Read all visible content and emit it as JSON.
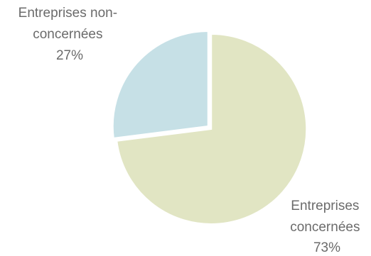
{
  "chart_data": {
    "type": "pie",
    "start_angle_deg": 0,
    "direction": "clockwise",
    "slices": [
      {
        "label_lines": [
          "Entreprises",
          "concernées",
          "73%"
        ],
        "value": 73,
        "color": "#e1e5c3"
      },
      {
        "label_lines": [
          "Entreprises non-",
          "concernées",
          "27%"
        ],
        "value": 27,
        "color": "#c6e0e6"
      }
    ]
  }
}
